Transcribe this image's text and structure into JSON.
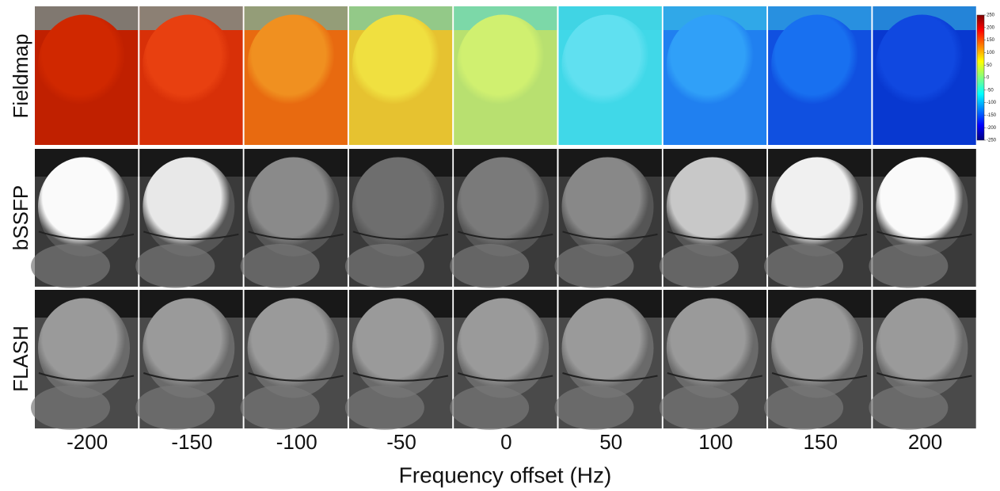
{
  "rows": [
    "Fieldmap",
    "bSSFP",
    "FLASH"
  ],
  "columns": [
    -200,
    -150,
    -100,
    -50,
    0,
    50,
    100,
    150,
    200
  ],
  "x_label": "Frequency offset  (Hz)",
  "colorbar": {
    "ticks": [
      250,
      200,
      150,
      100,
      50,
      0,
      -50,
      -100,
      -150,
      -200,
      -250
    ]
  }
}
